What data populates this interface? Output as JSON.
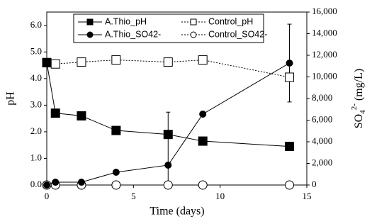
{
  "chart_data": {
    "type": "line",
    "xlabel": "Time (days)",
    "ylabel": "pH",
    "y2label": {
      "base": "SO",
      "sub": "4",
      "sup": "2-",
      "unit": " (mg/L)"
    },
    "xlim": [
      0,
      15
    ],
    "xticks": [
      0,
      5,
      10,
      15
    ],
    "ylim": [
      0,
      6.5
    ],
    "yticks": [
      {
        "value": 0,
        "label": "0.0"
      },
      {
        "value": 1,
        "label": "1.0"
      },
      {
        "value": 2,
        "label": "2.0"
      },
      {
        "value": 3,
        "label": "3.0"
      },
      {
        "value": 4,
        "label": "4.0"
      },
      {
        "value": 5,
        "label": "5.0"
      },
      {
        "value": 6,
        "label": "6.0"
      }
    ],
    "y2lim": [
      0,
      16000
    ],
    "y2ticks": [
      0,
      {
        "value": 2000,
        "label": "2,000"
      },
      {
        "value": 4000,
        "label": "4,000"
      },
      {
        "value": 6000,
        "label": "6,000"
      },
      {
        "value": 8000,
        "label": "8,000"
      },
      {
        "value": 10000,
        "label": "10,000"
      },
      {
        "value": 12000,
        "label": "12,000"
      },
      {
        "value": 14000,
        "label": "14,000"
      },
      {
        "value": 16000,
        "label": "16,000"
      }
    ],
    "legend": "upper center",
    "series": [
      {
        "name": "A.Thio_pH",
        "color": "#000000",
        "marker": "square",
        "filled": true,
        "dash": "solid",
        "x": [
          0,
          0.5,
          2,
          4,
          7,
          9,
          14
        ],
        "values": [
          4.6,
          2.7,
          2.6,
          2.05,
          1.9,
          1.65,
          1.45
        ]
      },
      {
        "name": "Control_pH",
        "color": "#000000",
        "marker": "square",
        "filled": false,
        "dash": "dotted",
        "x": [
          0,
          0.5,
          2,
          4,
          7,
          9,
          14
        ],
        "values": [
          4.6,
          4.55,
          4.62,
          4.7,
          4.62,
          4.7,
          4.05
        ]
      },
      {
        "name": "A.Thio_SO42-",
        "color": "#000000",
        "marker": "circle",
        "filled": true,
        "dash": "solid",
        "axis": "y2",
        "x": [
          0,
          0.5,
          2,
          4,
          7,
          9,
          14
        ],
        "values": [
          0,
          260,
          260,
          1180,
          1840,
          6560,
          11280
        ],
        "errors": [
          null,
          null,
          null,
          null,
          4900,
          null,
          3600
        ]
      },
      {
        "name": "Control_SO42-",
        "color": "#000000",
        "marker": "circle",
        "filled": false,
        "dash": "dotted",
        "axis": "y2",
        "x": [
          0,
          0.5,
          2,
          4,
          7,
          9,
          14
        ],
        "values": [
          0,
          0,
          0,
          0,
          0,
          0,
          0
        ]
      }
    ]
  }
}
